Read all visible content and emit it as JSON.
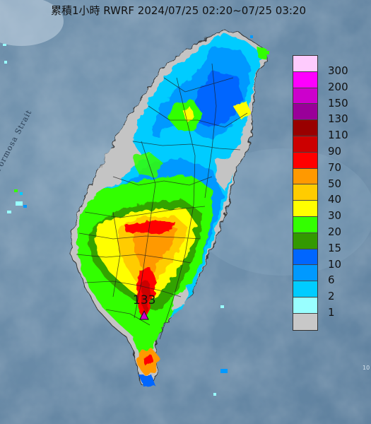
{
  "header": {
    "title": "累積1小時 RWRF 2024/07/25 02:20~07/25 03:20"
  },
  "map": {
    "strait_label": "Formosa Strait",
    "peak_value": "133",
    "corner_mark": "10"
  },
  "legend": {
    "items": [
      {
        "label": "300",
        "color": "#fecbfd"
      },
      {
        "label": "200",
        "color": "#fe00fe"
      },
      {
        "label": "150",
        "color": "#cc00cc"
      },
      {
        "label": "130",
        "color": "#990099"
      },
      {
        "label": "110",
        "color": "#990000"
      },
      {
        "label": "90",
        "color": "#cc0000"
      },
      {
        "label": "70",
        "color": "#ff0000"
      },
      {
        "label": "50",
        "color": "#ff9900"
      },
      {
        "label": "40",
        "color": "#ffcc00"
      },
      {
        "label": "30",
        "color": "#ffff00"
      },
      {
        "label": "20",
        "color": "#33ff00"
      },
      {
        "label": "15",
        "color": "#339900"
      },
      {
        "label": "10",
        "color": "#0066ff"
      },
      {
        "label": "6",
        "color": "#0099ff"
      },
      {
        "label": "2",
        "color": "#00ccff"
      },
      {
        "label": "1",
        "color": "#99ffff"
      },
      {
        "label": "",
        "color": "#c8c8c8"
      }
    ]
  }
}
